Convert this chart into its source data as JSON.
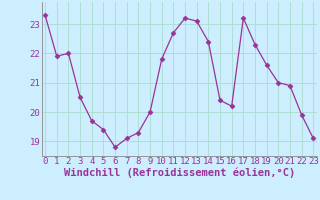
{
  "x": [
    0,
    1,
    2,
    3,
    4,
    5,
    6,
    7,
    8,
    9,
    10,
    11,
    12,
    13,
    14,
    15,
    16,
    17,
    18,
    19,
    20,
    21,
    22,
    23
  ],
  "y": [
    23.3,
    21.9,
    22.0,
    20.5,
    19.7,
    19.4,
    18.8,
    19.1,
    19.3,
    20.0,
    21.8,
    22.7,
    23.2,
    23.1,
    22.4,
    20.4,
    20.2,
    23.2,
    22.3,
    21.6,
    21.0,
    20.9,
    19.9,
    19.1
  ],
  "line_color": "#993399",
  "marker": "D",
  "marker_size": 2.5,
  "bg_color": "#cceeff",
  "grid_color": "#aaddcc",
  "xlabel": "Windchill (Refroidissement éolien,°C)",
  "xlabel_fontsize": 7.5,
  "tick_fontsize": 6.5,
  "ylim": [
    18.5,
    23.75
  ],
  "yticks": [
    19,
    20,
    21,
    22,
    23
  ],
  "xticks": [
    0,
    1,
    2,
    3,
    4,
    5,
    6,
    7,
    8,
    9,
    10,
    11,
    12,
    13,
    14,
    15,
    16,
    17,
    18,
    19,
    20,
    21,
    22,
    23
  ],
  "xlim": [
    -0.3,
    23.3
  ],
  "spine_color": "#888888"
}
